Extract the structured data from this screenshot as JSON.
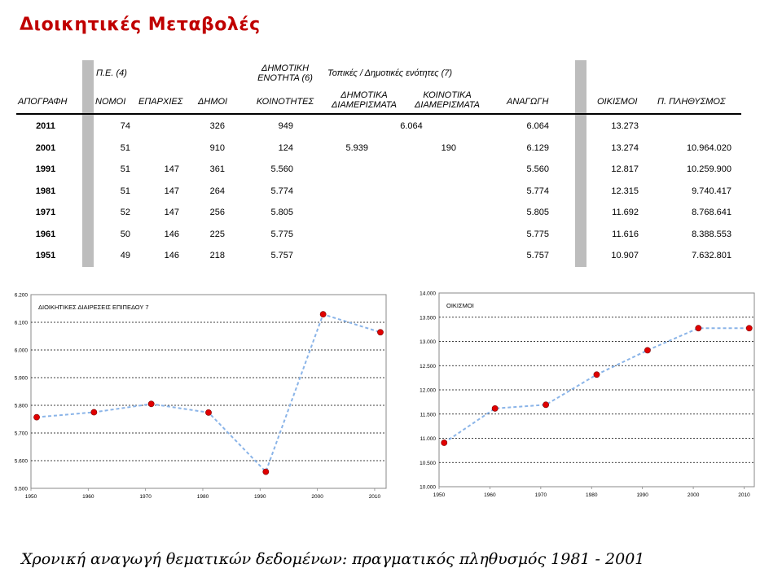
{
  "title": "Διοικητικές Μεταβολές",
  "table": {
    "group_headers": {
      "pe": "Π.Ε. (4)",
      "dimotiki_line1": "ΔΗΜΟΤΙΚΗ",
      "dimotiki_line2": "ΕΝΟΤΗΤΑ (6)",
      "topikes": "Τοπικές / Δημοτικές ενότητες (7)"
    },
    "columns": {
      "apografi": "ΑΠΟΓΡΑΦΗ",
      "nomoi": "ΝΟΜΟΙ",
      "eparxies": "ΕΠΑΡΧΙΕΣ",
      "dimoi": "ΔΗΜΟΙ",
      "koinotites": "ΚΟΙΝΟΤΗΤΕΣ",
      "dim_diam_1": "ΔΗΜΟΤΙΚΑ",
      "dim_diam_2": "ΔΙΑΜΕΡΙΣΜΑΤΑ",
      "koin_diam_1": "ΚΟΙΝΟΤΙΚΑ",
      "koin_diam_2": "ΔΙΑΜΕΡΙΣΜΑΤΑ",
      "anagogi": "ΑΝΑΓΩΓΗ",
      "oikismoi": "ΟΙΚΙΣΜΟΙ",
      "plithysmos": "Π. ΠΛΗΘΥΣΜΟΣ"
    },
    "rows": [
      {
        "year": "2011",
        "nomoi": "74",
        "eparxies": "",
        "dimoi": "326",
        "koinotites": "949",
        "dim_diam": "",
        "koin_diam": "",
        "merged": "6.064",
        "anagogi": "6.064",
        "oikismoi": "13.273",
        "plithysmos": ""
      },
      {
        "year": "2001",
        "nomoi": "51",
        "eparxies": "",
        "dimoi": "910",
        "koinotites": "124",
        "dim_diam": "5.939",
        "koin_diam": "190",
        "merged": "",
        "anagogi": "6.129",
        "oikismoi": "13.274",
        "plithysmos": "10.964.020"
      },
      {
        "year": "1991",
        "nomoi": "51",
        "eparxies": "147",
        "dimoi": "361",
        "koinotites": "5.560",
        "dim_diam": "",
        "koin_diam": "",
        "merged": "",
        "anagogi": "5.560",
        "oikismoi": "12.817",
        "plithysmos": "10.259.900"
      },
      {
        "year": "1981",
        "nomoi": "51",
        "eparxies": "147",
        "dimoi": "264",
        "koinotites": "5.774",
        "dim_diam": "",
        "koin_diam": "",
        "merged": "",
        "anagogi": "5.774",
        "oikismoi": "12.315",
        "plithysmos": "9.740.417"
      },
      {
        "year": "1971",
        "nomoi": "52",
        "eparxies": "147",
        "dimoi": "256",
        "koinotites": "5.805",
        "dim_diam": "",
        "koin_diam": "",
        "merged": "",
        "anagogi": "5.805",
        "oikismoi": "11.692",
        "plithysmos": "8.768.641"
      },
      {
        "year": "1961",
        "nomoi": "50",
        "eparxies": "146",
        "dimoi": "225",
        "koinotites": "5.775",
        "dim_diam": "",
        "koin_diam": "",
        "merged": "",
        "anagogi": "5.775",
        "oikismoi": "11.616",
        "plithysmos": "8.388.553"
      },
      {
        "year": "1951",
        "nomoi": "49",
        "eparxies": "146",
        "dimoi": "218",
        "koinotites": "5.757",
        "dim_diam": "",
        "koin_diam": "",
        "merged": "",
        "anagogi": "5.757",
        "oikismoi": "10.907",
        "plithysmos": "7.632.801"
      }
    ]
  },
  "chart_data": [
    {
      "type": "line",
      "legend_label": "ΔΙΟΙΚΗΤΙΚΕΣ ΔΙΑΙΡΕΣΕΙΣ ΕΠΙΠΕΔΟΥ 7",
      "x": [
        1951,
        1961,
        1971,
        1981,
        1991,
        2001,
        2011
      ],
      "series": [
        {
          "values": [
            5757,
            5775,
            5805,
            5774,
            5560,
            6129,
            6064
          ]
        }
      ],
      "xlim": [
        1950,
        2012
      ],
      "ylim": [
        5500,
        6200
      ],
      "xticks": [
        1950,
        1960,
        1970,
        1980,
        1990,
        2000,
        2010
      ],
      "yticks": [
        5500,
        5600,
        5700,
        5800,
        5900,
        6000,
        6100,
        6200
      ],
      "ytick_labels": [
        "5.500",
        "5.600",
        "5.700",
        "5.800",
        "5.900",
        "6.000",
        "6.100",
        "6.200"
      ],
      "grid": true,
      "line_color": "#8ab4e8",
      "marker_color": "#e00000"
    },
    {
      "type": "line",
      "legend_label": "ΟΙΚΙΣΜΟΙ",
      "x": [
        1951,
        1961,
        1971,
        1981,
        1991,
        2001,
        2011
      ],
      "series": [
        {
          "values": [
            10907,
            11616,
            11692,
            12315,
            12817,
            13274,
            13273
          ]
        }
      ],
      "xlim": [
        1950,
        2012
      ],
      "ylim": [
        10000,
        14000
      ],
      "xticks": [
        1950,
        1960,
        1970,
        1980,
        1990,
        2000,
        2010
      ],
      "yticks": [
        10000,
        10500,
        11000,
        11500,
        12000,
        12500,
        13000,
        13500,
        14000
      ],
      "ytick_labels": [
        "10.000",
        "10.500",
        "11.000",
        "11.500",
        "12.000",
        "12.500",
        "13.000",
        "13.500",
        "14.000"
      ],
      "grid": true,
      "line_color": "#8ab4e8",
      "marker_color": "#e00000"
    }
  ],
  "caption": "Χρονική αναγωγή θεματικών δεδομένων: πραγματικός πληθυσμός 1981 - 2001"
}
